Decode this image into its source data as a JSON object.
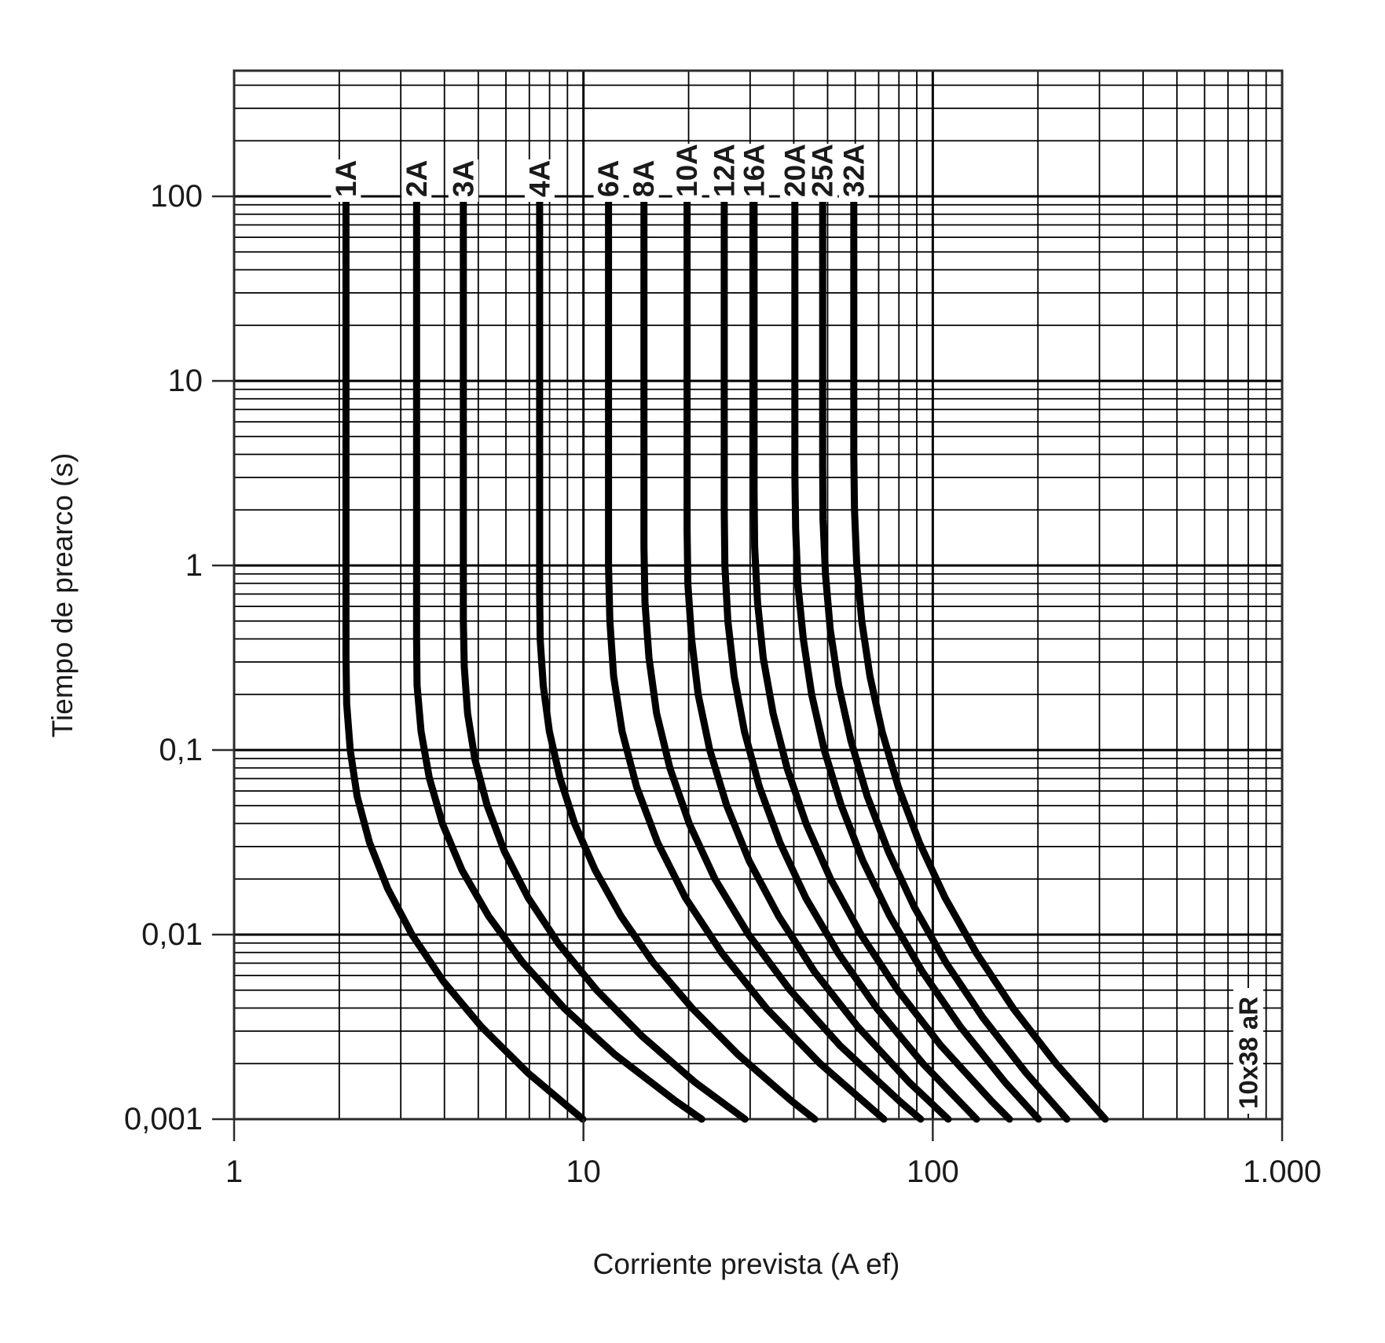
{
  "chart_data": {
    "type": "line",
    "title": "",
    "xlabel": "Corriente prevista (A ef)",
    "ylabel": "Tiempo de prearco (s)",
    "annotation": "10x38 aR",
    "line_color": "#000000",
    "grid": {
      "minor": true,
      "color": "#000000"
    },
    "x_axis": {
      "scale": "log",
      "min": 1,
      "max": 1000,
      "ticks": [
        [
          "1",
          1
        ],
        [
          "10",
          10
        ],
        [
          "100",
          100
        ],
        [
          "1.000",
          1000
        ]
      ]
    },
    "y_axis": {
      "scale": "log",
      "min": 0.001,
      "max": 480,
      "ticks": [
        [
          "100",
          100
        ],
        [
          "10",
          10
        ],
        [
          "1",
          1
        ],
        [
          "0,1",
          0.1
        ],
        [
          "0,01",
          0.01
        ],
        [
          "0,001",
          0.001
        ]
      ]
    },
    "series": [
      {
        "name": "1A",
        "points": [
          [
            2.09,
            100
          ],
          [
            2.09,
            0.316
          ],
          [
            2.1,
            0.178
          ],
          [
            2.15,
            0.1
          ],
          [
            2.25,
            0.0562
          ],
          [
            2.44,
            0.0316
          ],
          [
            2.75,
            0.0178
          ],
          [
            3.23,
            0.01
          ],
          [
            3.96,
            0.00562
          ],
          [
            5.11,
            0.00316
          ],
          [
            6.94,
            0.00178
          ],
          [
            9.96,
            0.001
          ]
        ]
      },
      {
        "name": "2A",
        "points": [
          [
            3.33,
            100
          ],
          [
            3.33,
            0.398
          ],
          [
            3.34,
            0.224
          ],
          [
            3.43,
            0.126
          ],
          [
            3.62,
            0.0708
          ],
          [
            3.95,
            0.0398
          ],
          [
            4.49,
            0.0224
          ],
          [
            5.35,
            0.0126
          ],
          [
            6.69,
            0.00708
          ],
          [
            8.82,
            0.00398
          ],
          [
            12.3,
            0.00224
          ],
          [
            18.3,
            0.00126
          ],
          [
            21.8,
            0.001
          ]
        ]
      },
      {
        "name": "3A",
        "points": [
          [
            4.53,
            100
          ],
          [
            4.53,
            0.501
          ],
          [
            4.56,
            0.282
          ],
          [
            4.66,
            0.158
          ],
          [
            4.89,
            0.0891
          ],
          [
            5.3,
            0.0501
          ],
          [
            5.94,
            0.0282
          ],
          [
            6.95,
            0.0158
          ],
          [
            8.49,
            0.00891
          ],
          [
            10.9,
            0.00501
          ],
          [
            14.7,
            0.00282
          ],
          [
            20.9,
            0.00158
          ],
          [
            29.0,
            0.001
          ]
        ]
      },
      {
        "name": "4A",
        "points": [
          [
            7.49,
            100
          ],
          [
            7.49,
            0.708
          ],
          [
            7.52,
            0.398
          ],
          [
            7.67,
            0.224
          ],
          [
            7.99,
            0.126
          ],
          [
            8.56,
            0.0708
          ],
          [
            9.44,
            0.0398
          ],
          [
            10.8,
            0.0224
          ],
          [
            12.8,
            0.0126
          ],
          [
            15.8,
            0.00708
          ],
          [
            20.5,
            0.00398
          ],
          [
            27.7,
            0.00224
          ],
          [
            39.3,
            0.00126
          ],
          [
            45.9,
            0.001
          ]
        ]
      },
      {
        "name": "6A",
        "points": [
          [
            11.8,
            100
          ],
          [
            11.8,
            1.0
          ],
          [
            11.9,
            0.501
          ],
          [
            12.2,
            0.251
          ],
          [
            12.9,
            0.126
          ],
          [
            14.2,
            0.0631
          ],
          [
            16.3,
            0.0316
          ],
          [
            19.6,
            0.0158
          ],
          [
            24.9,
            0.00794
          ],
          [
            33.4,
            0.00398
          ],
          [
            47.6,
            0.002
          ],
          [
            72.4,
            0.001
          ]
        ]
      },
      {
        "name": "8A",
        "points": [
          [
            14.9,
            100
          ],
          [
            14.9,
            1.26
          ],
          [
            15.0,
            0.631
          ],
          [
            15.4,
            0.316
          ],
          [
            16.2,
            0.158
          ],
          [
            17.7,
            0.0794
          ],
          [
            20.1,
            0.0398
          ],
          [
            23.8,
            0.02
          ],
          [
            29.7,
            0.01
          ],
          [
            39.0,
            0.00501
          ],
          [
            54.2,
            0.00251
          ],
          [
            80.0,
            0.00126
          ],
          [
            92.3,
            0.001
          ]
        ]
      },
      {
        "name": "10A",
        "points": [
          [
            19.8,
            100
          ],
          [
            19.8,
            1.58
          ],
          [
            19.9,
            0.794
          ],
          [
            20.4,
            0.398
          ],
          [
            21.3,
            0.2
          ],
          [
            23.0,
            0.1
          ],
          [
            25.7,
            0.0501
          ],
          [
            29.8,
            0.0251
          ],
          [
            36.2,
            0.0126
          ],
          [
            45.8,
            0.00631
          ],
          [
            61.1,
            0.00316
          ],
          [
            85.7,
            0.00158
          ],
          [
            110.7,
            0.001
          ]
        ]
      },
      {
        "name": "12A",
        "points": [
          [
            25.3,
            100
          ],
          [
            25.3,
            2.0
          ],
          [
            25.4,
            1.0
          ],
          [
            25.9,
            0.501
          ],
          [
            27.0,
            0.251
          ],
          [
            28.9,
            0.126
          ],
          [
            31.9,
            0.0631
          ],
          [
            36.5,
            0.0316
          ],
          [
            43.3,
            0.0158
          ],
          [
            53.6,
            0.00794
          ],
          [
            69.2,
            0.00398
          ],
          [
            93.7,
            0.002
          ],
          [
            133.4,
            0.001
          ]
        ]
      },
      {
        "name": "16A",
        "points": [
          [
            30.8,
            100
          ],
          [
            30.8,
            2.51
          ],
          [
            30.9,
            1.26
          ],
          [
            31.5,
            0.631
          ],
          [
            32.7,
            0.316
          ],
          [
            34.9,
            0.158
          ],
          [
            38.3,
            0.0794
          ],
          [
            43.4,
            0.0398
          ],
          [
            51.0,
            0.02
          ],
          [
            62.3,
            0.01
          ],
          [
            79.3,
            0.00501
          ],
          [
            105.4,
            0.00251
          ],
          [
            146.9,
            0.00126
          ],
          [
            165.8,
            0.001
          ]
        ]
      },
      {
        "name": "20A",
        "points": [
          [
            40.3,
            100
          ],
          [
            40.3,
            3.16
          ],
          [
            40.5,
            1.58
          ],
          [
            41.1,
            0.794
          ],
          [
            42.6,
            0.398
          ],
          [
            45.0,
            0.2
          ],
          [
            48.9,
            0.1
          ],
          [
            54.7,
            0.0501
          ],
          [
            63.1,
            0.0251
          ],
          [
            75.3,
            0.0126
          ],
          [
            93.3,
            0.00631
          ],
          [
            120.1,
            0.00316
          ],
          [
            161.2,
            0.00158
          ],
          [
            200.8,
            0.001
          ]
        ]
      },
      {
        "name": "25A",
        "points": [
          [
            48.4,
            100
          ],
          [
            48.4,
            3.55
          ],
          [
            48.5,
            1.78
          ],
          [
            49.3,
            0.891
          ],
          [
            50.9,
            0.447
          ],
          [
            53.8,
            0.224
          ],
          [
            58.3,
            0.112
          ],
          [
            64.9,
            0.0562
          ],
          [
            74.6,
            0.0282
          ],
          [
            88.5,
            0.0141
          ],
          [
            108.9,
            0.00708
          ],
          [
            139.1,
            0.00355
          ],
          [
            185.0,
            0.00178
          ],
          [
            241.9,
            0.001
          ]
        ]
      },
      {
        "name": "32A",
        "points": [
          [
            59.4,
            100
          ],
          [
            59.4,
            3.98
          ],
          [
            59.7,
            2.0
          ],
          [
            60.6,
            1.0
          ],
          [
            62.6,
            0.501
          ],
          [
            66.1,
            0.251
          ],
          [
            71.6,
            0.126
          ],
          [
            79.7,
            0.0631
          ],
          [
            91.5,
            0.0316
          ],
          [
            108.5,
            0.0158
          ],
          [
            133.3,
            0.00794
          ],
          [
            170.0,
            0.00398
          ],
          [
            225.4,
            0.002
          ],
          [
            311.7,
            0.001
          ]
        ]
      }
    ]
  }
}
